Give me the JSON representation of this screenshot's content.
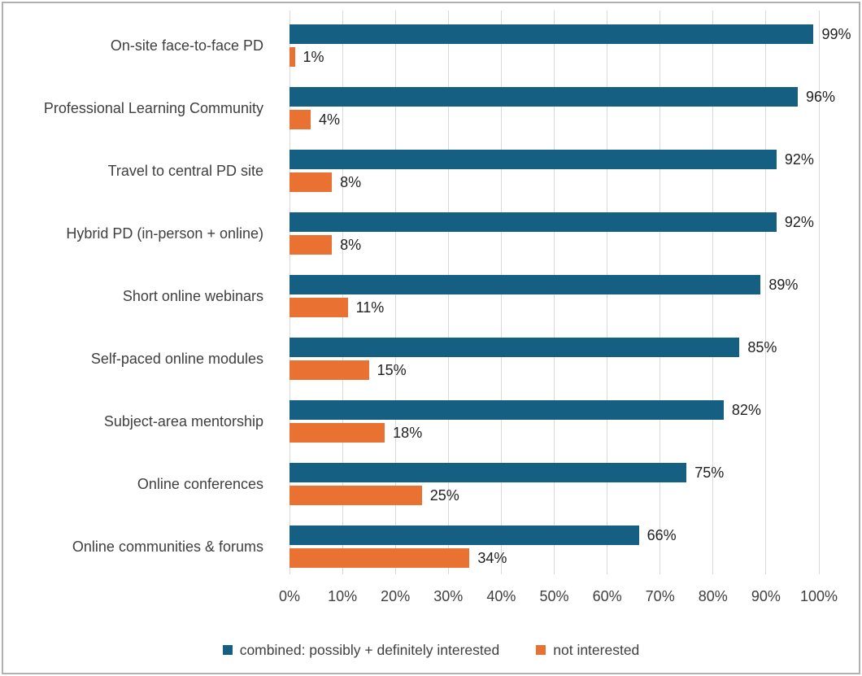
{
  "chart_data": {
    "type": "bar",
    "orientation": "horizontal",
    "title": "",
    "categories": [
      "On-site face-to-face PD",
      "Professional Learning Community",
      "Travel to central PD site",
      "Hybrid PD (in-person + online)",
      "Short online webinars",
      "Self-paced online modules",
      "Subject-area mentorship",
      "Online conferences",
      "Online communities & forums"
    ],
    "series": [
      {
        "name": "combined: possibly + definitely interested",
        "color": "#156082",
        "values": [
          99,
          96,
          92,
          92,
          89,
          85,
          82,
          75,
          66
        ],
        "labels": [
          "99%",
          "96%",
          "92%",
          "92%",
          "89%",
          "85%",
          "82%",
          "75%",
          "66%"
        ]
      },
      {
        "name": "not interested",
        "color": "#E97132",
        "values": [
          1,
          4,
          8,
          8,
          11,
          15,
          18,
          25,
          34
        ],
        "labels": [
          "1%",
          "4%",
          "8%",
          "8%",
          "11%",
          "15%",
          "18%",
          "25%",
          "34%"
        ]
      }
    ],
    "x_ticks": [
      "0%",
      "10%",
      "20%",
      "30%",
      "40%",
      "50%",
      "60%",
      "70%",
      "80%",
      "90%",
      "100%"
    ],
    "x_tick_values": [
      0,
      10,
      20,
      30,
      40,
      50,
      60,
      70,
      80,
      90,
      100
    ],
    "xlim": [
      0,
      100
    ],
    "grid": true,
    "legend_position": "bottom"
  },
  "colors": {
    "series_combined": "#156082",
    "series_not_interested": "#E97132",
    "gridline": "#D9D9D9",
    "frame_border": "#B0B0B0",
    "category_text": "#3F3F3F",
    "tick_text": "#3F3F3F",
    "value_text": "#1F1F1F",
    "legend_text": "#404040",
    "background": "#FFFFFF"
  }
}
